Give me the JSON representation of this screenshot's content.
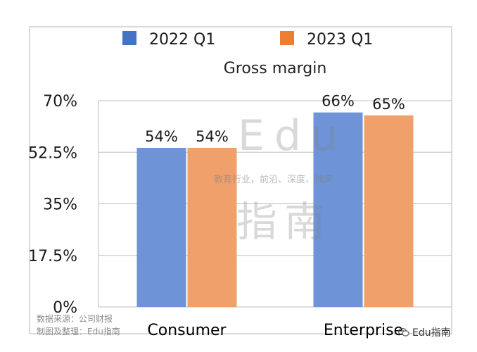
{
  "chart_data": {
    "type": "bar",
    "title": "Gross margin",
    "categories": [
      "Consumer",
      "Enterprise"
    ],
    "series": [
      {
        "name": "2022 Q1",
        "values": [
          54,
          66
        ],
        "labels": [
          "54%",
          "66%"
        ],
        "color": "#6e93d6",
        "legend_color": "#4472c4"
      },
      {
        "name": "2023 Q1",
        "values": [
          54,
          65
        ],
        "labels": [
          "54%",
          "65%"
        ],
        "color": "#f0a06a",
        "legend_color": "#ed7d31"
      }
    ],
    "yticks": [
      0,
      17.5,
      35,
      52.5,
      70
    ],
    "ytick_labels": [
      "0%",
      "17.5%",
      "35%",
      "52.5%",
      "70%"
    ],
    "ylim": [
      0,
      70
    ],
    "xlabel": "",
    "ylabel": "",
    "grid": true,
    "legend_position": "top"
  },
  "source": {
    "line1": "数据来源：公司财报",
    "line2": "制图及整理：Edu指南"
  },
  "watermark": {
    "brand": "Edu",
    "tagline": "教育行业，前沿、深度、独家",
    "brand_cn": "指南"
  },
  "wechat": {
    "account": "Edu指南",
    "icon": "wechat-icon"
  }
}
